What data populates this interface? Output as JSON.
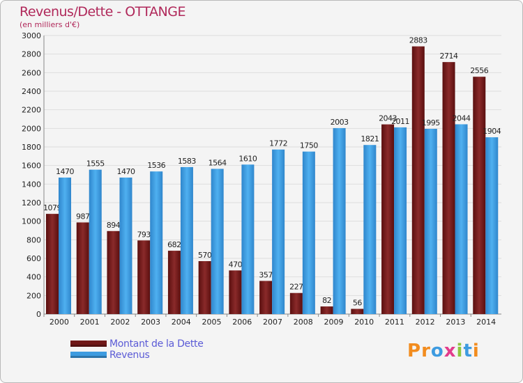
{
  "title": "Revenus/Dette - OTTANGE",
  "subtitle": "(en milliers d'€)",
  "colors": {
    "debt": "#6f1818",
    "revenue": "#3d9be0",
    "background": "#f4f4f4",
    "grid": "#dddddd",
    "accent": "#b0285a"
  },
  "legend": [
    {
      "label": "Montant de la Dette",
      "color_key": "debt"
    },
    {
      "label": "Revenus",
      "color_key": "revenue"
    }
  ],
  "logo": {
    "text": "Proxiti",
    "letters": [
      "P",
      "r",
      "o",
      "x",
      "i",
      "t",
      "i"
    ],
    "letter_colors": [
      "#f28c1e",
      "#f28c1e",
      "#3d9be0",
      "#e23c8c",
      "#8dc63f",
      "#3d9be0",
      "#f28c1e"
    ]
  },
  "chart_data": {
    "type": "bar",
    "categories": [
      "2000",
      "2001",
      "2002",
      "2003",
      "2004",
      "2005",
      "2006",
      "2007",
      "2008",
      "2009",
      "2010",
      "2011",
      "2012",
      "2013",
      "2014"
    ],
    "series": [
      {
        "name": "Montant de la Dette",
        "values": [
          1079,
          987,
          894,
          793,
          682,
          570,
          470,
          357,
          227,
          82,
          56,
          2043,
          2883,
          2714,
          2556
        ],
        "labels": [
          "1079",
          "987",
          "894",
          "793",
          "682",
          "570",
          "470",
          "357",
          "227",
          "82",
          "56",
          "2043",
          "2883",
          "2714",
          "2556"
        ]
      },
      {
        "name": "Revenus",
        "values": [
          1470,
          1555,
          1470,
          1536,
          1583,
          1564,
          1610,
          1772,
          1750,
          2003,
          1821,
          2011,
          1995,
          2044,
          1904
        ],
        "labels": [
          "1470",
          "1555",
          "1470",
          "1536",
          "1583",
          "1564",
          "1610",
          "1772",
          "1750",
          "2003",
          "1821",
          "2011",
          "1995",
          "2044",
          "1904"
        ]
      }
    ],
    "ylim": [
      0,
      3000
    ],
    "yticks": [
      "0",
      "200",
      "400",
      "600",
      "800",
      "1000",
      "1200",
      "1400",
      "1600",
      "1800",
      "2000",
      "2200",
      "2400",
      "2600",
      "2800",
      "3000"
    ],
    "grid": true,
    "legend_position": "bottom-left"
  }
}
